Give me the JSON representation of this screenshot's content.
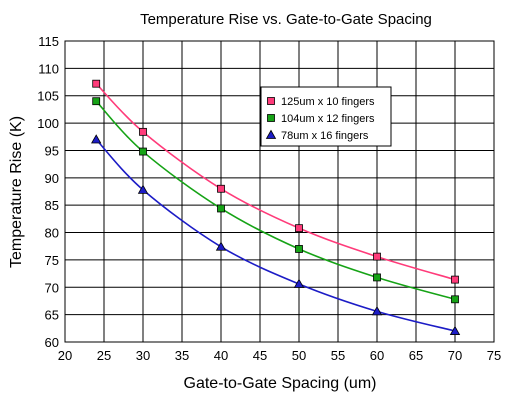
{
  "chart_data": {
    "type": "line",
    "title": "Temperature Rise vs. Gate-to-Gate Spacing",
    "xlabel": "Gate-to-Gate Spacing (um)",
    "ylabel": "Temperature Rise (K)",
    "xlim": [
      20,
      75
    ],
    "ylim": [
      60,
      115
    ],
    "xticks": [
      20,
      25,
      30,
      35,
      40,
      45,
      50,
      55,
      60,
      65,
      70,
      75
    ],
    "yticks": [
      60,
      65,
      70,
      75,
      80,
      85,
      90,
      95,
      100,
      105,
      110,
      115
    ],
    "grid": "horizontal and vertical",
    "legend_position": "top-right",
    "x": [
      24,
      30,
      40,
      50,
      60,
      70
    ],
    "series": [
      {
        "name": "125um x 10 fingers",
        "marker": "square",
        "color": "#ff3b7a",
        "values": [
          107.2,
          98.4,
          88.0,
          80.8,
          75.6,
          71.4
        ]
      },
      {
        "name": "104um x 12 fingers",
        "marker": "square",
        "color": "#16a316",
        "values": [
          104.0,
          94.8,
          84.4,
          77.0,
          71.8,
          67.8
        ]
      },
      {
        "name": "78um x 16 fingers",
        "marker": "triangle",
        "color": "#1c1cc6",
        "values": [
          97.0,
          87.8,
          77.4,
          70.6,
          65.6,
          62.0
        ]
      }
    ]
  }
}
